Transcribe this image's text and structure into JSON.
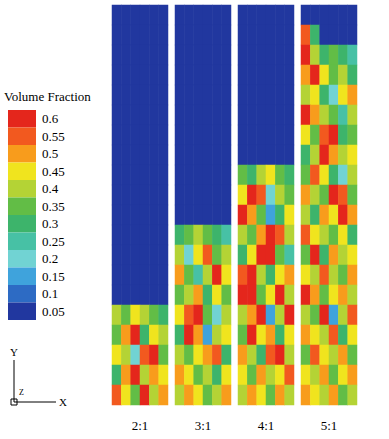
{
  "chart_data": {
    "type": "heatmap",
    "color_bar": {
      "title": "Volume Fraction",
      "levels": [
        0.6,
        0.55,
        0.5,
        0.45,
        0.4,
        0.35,
        0.3,
        0.25,
        0.2,
        0.15,
        0.1,
        0.05
      ],
      "colors": [
        "#e4261c",
        "#f2591f",
        "#f89c1c",
        "#f0e41e",
        "#b4d335",
        "#62bd46",
        "#3db46b",
        "#47c1a5",
        "#71d3d3",
        "#3fa3dc",
        "#2d6bc4",
        "#21379f"
      ]
    },
    "axis_triad": {
      "y": "Y",
      "z": "Z",
      "x": "X"
    },
    "panels": [
      {
        "label": "2:1",
        "cells": [
          [
            0.05,
            0.05,
            0.05,
            0.05,
            0.05,
            0.05
          ],
          [
            0.05,
            0.05,
            0.05,
            0.05,
            0.05,
            0.05
          ],
          [
            0.05,
            0.05,
            0.05,
            0.05,
            0.05,
            0.05
          ],
          [
            0.05,
            0.05,
            0.05,
            0.05,
            0.05,
            0.05
          ],
          [
            0.05,
            0.05,
            0.05,
            0.05,
            0.05,
            0.05
          ],
          [
            0.05,
            0.05,
            0.05,
            0.05,
            0.05,
            0.05
          ],
          [
            0.05,
            0.05,
            0.05,
            0.05,
            0.05,
            0.05
          ],
          [
            0.05,
            0.05,
            0.05,
            0.05,
            0.05,
            0.05
          ],
          [
            0.05,
            0.05,
            0.05,
            0.05,
            0.05,
            0.05
          ],
          [
            0.05,
            0.05,
            0.05,
            0.05,
            0.05,
            0.05
          ],
          [
            0.05,
            0.05,
            0.05,
            0.05,
            0.05,
            0.05
          ],
          [
            0.05,
            0.05,
            0.05,
            0.05,
            0.05,
            0.05
          ],
          [
            0.05,
            0.05,
            0.05,
            0.05,
            0.05,
            0.05
          ],
          [
            0.05,
            0.05,
            0.05,
            0.05,
            0.05,
            0.05
          ],
          [
            0.05,
            0.05,
            0.05,
            0.05,
            0.05,
            0.05
          ],
          [
            0.4,
            0.35,
            0.45,
            0.4,
            0.35,
            0.3
          ],
          [
            0.35,
            0.5,
            0.6,
            0.3,
            0.45,
            0.4
          ],
          [
            0.45,
            0.4,
            0.2,
            0.55,
            0.6,
            0.35
          ],
          [
            0.3,
            0.5,
            0.6,
            0.4,
            0.5,
            0.45
          ],
          [
            0.55,
            0.45,
            0.35,
            0.6,
            0.4,
            0.5
          ]
        ]
      },
      {
        "label": "3:1",
        "cells": [
          [
            0.05,
            0.05,
            0.05,
            0.05,
            0.05,
            0.05
          ],
          [
            0.05,
            0.05,
            0.05,
            0.05,
            0.05,
            0.05
          ],
          [
            0.05,
            0.05,
            0.05,
            0.05,
            0.05,
            0.05
          ],
          [
            0.05,
            0.05,
            0.05,
            0.05,
            0.05,
            0.05
          ],
          [
            0.05,
            0.05,
            0.05,
            0.05,
            0.05,
            0.05
          ],
          [
            0.05,
            0.05,
            0.05,
            0.05,
            0.05,
            0.05
          ],
          [
            0.05,
            0.05,
            0.05,
            0.05,
            0.05,
            0.05
          ],
          [
            0.05,
            0.05,
            0.05,
            0.05,
            0.05,
            0.05
          ],
          [
            0.05,
            0.05,
            0.05,
            0.05,
            0.05,
            0.05
          ],
          [
            0.05,
            0.05,
            0.05,
            0.05,
            0.05,
            0.05
          ],
          [
            0.05,
            0.05,
            0.05,
            0.05,
            0.05,
            0.05
          ],
          [
            0.3,
            0.35,
            0.4,
            0.35,
            0.3,
            0.25
          ],
          [
            0.4,
            0.2,
            0.45,
            0.55,
            0.35,
            0.4
          ],
          [
            0.5,
            0.35,
            0.25,
            0.4,
            0.6,
            0.45
          ],
          [
            0.35,
            0.4,
            0.5,
            0.3,
            0.45,
            0.35
          ],
          [
            0.45,
            0.55,
            0.6,
            0.35,
            0.2,
            0.4
          ],
          [
            0.3,
            0.6,
            0.5,
            0.15,
            0.4,
            0.45
          ],
          [
            0.4,
            0.35,
            0.45,
            0.5,
            0.55,
            0.3
          ],
          [
            0.5,
            0.45,
            0.35,
            0.4,
            0.3,
            0.45
          ],
          [
            0.4,
            0.5,
            0.45,
            0.35,
            0.4,
            0.5
          ]
        ]
      },
      {
        "label": "4:1",
        "cells": [
          [
            0.05,
            0.05,
            0.05,
            0.05,
            0.05,
            0.05
          ],
          [
            0.05,
            0.05,
            0.05,
            0.05,
            0.05,
            0.05
          ],
          [
            0.05,
            0.05,
            0.05,
            0.05,
            0.05,
            0.05
          ],
          [
            0.05,
            0.05,
            0.05,
            0.05,
            0.05,
            0.05
          ],
          [
            0.05,
            0.05,
            0.05,
            0.05,
            0.05,
            0.05
          ],
          [
            0.05,
            0.05,
            0.05,
            0.05,
            0.05,
            0.05
          ],
          [
            0.05,
            0.05,
            0.05,
            0.05,
            0.05,
            0.05
          ],
          [
            0.05,
            0.05,
            0.05,
            0.05,
            0.05,
            0.05
          ],
          [
            0.35,
            0.3,
            0.4,
            0.45,
            0.35,
            0.3
          ],
          [
            0.45,
            0.6,
            0.55,
            0.2,
            0.4,
            0.35
          ],
          [
            0.6,
            0.5,
            0.35,
            0.15,
            0.3,
            0.45
          ],
          [
            0.4,
            0.35,
            0.5,
            0.6,
            0.55,
            0.4
          ],
          [
            0.3,
            0.45,
            0.6,
            0.6,
            0.35,
            0.25
          ],
          [
            0.55,
            0.6,
            0.4,
            0.3,
            0.45,
            0.5
          ],
          [
            0.6,
            0.6,
            0.35,
            0.45,
            0.6,
            0.4
          ],
          [
            0.4,
            0.5,
            0.6,
            0.15,
            0.4,
            0.6
          ],
          [
            0.35,
            0.6,
            0.45,
            0.5,
            0.3,
            0.45
          ],
          [
            0.5,
            0.4,
            0.3,
            0.55,
            0.6,
            0.4
          ],
          [
            0.45,
            0.35,
            0.5,
            0.4,
            0.45,
            0.55
          ],
          [
            0.4,
            0.5,
            0.45,
            0.35,
            0.5,
            0.4
          ]
        ]
      },
      {
        "label": "5:1",
        "cells": [
          [
            0.05,
            0.05,
            0.05,
            0.05,
            0.05,
            0.05
          ],
          [
            0.55,
            0.3,
            0.05,
            0.05,
            0.05,
            0.05
          ],
          [
            0.6,
            0.4,
            0.3,
            0.35,
            0.3,
            0.25
          ],
          [
            0.5,
            0.6,
            0.45,
            0.35,
            0.4,
            0.3
          ],
          [
            0.4,
            0.45,
            0.3,
            0.2,
            0.45,
            0.5
          ],
          [
            0.6,
            0.5,
            0.4,
            0.35,
            0.25,
            0.4
          ],
          [
            0.45,
            0.35,
            0.55,
            0.6,
            0.3,
            0.35
          ],
          [
            0.3,
            0.4,
            0.6,
            0.5,
            0.4,
            0.45
          ],
          [
            0.35,
            0.55,
            0.45,
            0.3,
            0.2,
            0.4
          ],
          [
            0.5,
            0.4,
            0.35,
            0.6,
            0.55,
            0.35
          ],
          [
            0.4,
            0.3,
            0.5,
            0.45,
            0.6,
            0.5
          ],
          [
            0.55,
            0.45,
            0.4,
            0.35,
            0.45,
            0.3
          ],
          [
            0.35,
            0.6,
            0.3,
            0.5,
            0.4,
            0.45
          ],
          [
            0.45,
            0.4,
            0.55,
            0.4,
            0.35,
            0.5
          ],
          [
            0.6,
            0.5,
            0.35,
            0.45,
            0.5,
            0.4
          ],
          [
            0.4,
            0.35,
            0.6,
            0.15,
            0.4,
            0.55
          ],
          [
            0.5,
            0.45,
            0.4,
            0.55,
            0.3,
            0.45
          ],
          [
            0.35,
            0.55,
            0.45,
            0.4,
            0.5,
            0.35
          ],
          [
            0.45,
            0.4,
            0.5,
            0.35,
            0.45,
            0.5
          ],
          [
            0.5,
            0.45,
            0.4,
            0.5,
            0.35,
            0.4
          ]
        ]
      }
    ]
  }
}
